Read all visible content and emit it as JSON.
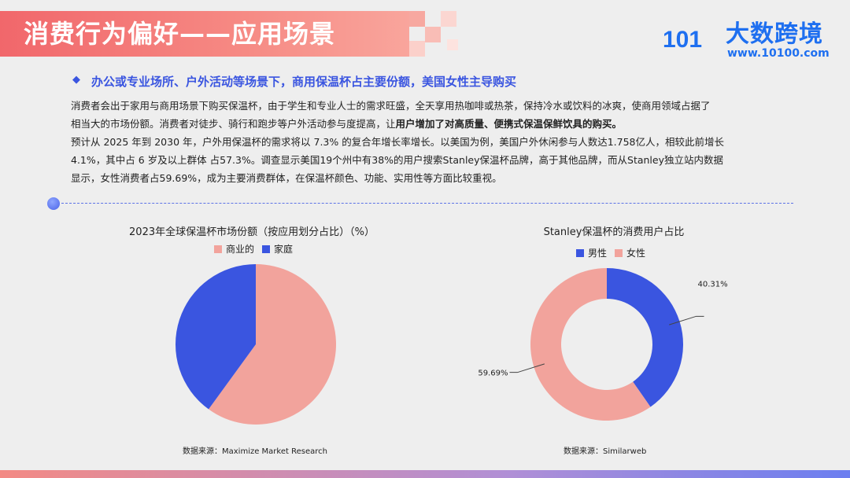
{
  "header": {
    "title": "消费行为偏好——应用场景",
    "logo_name": "大数跨境",
    "logo_url": "www.10100.com",
    "logo_mark": "10100",
    "brand_color": "#1e6ff0"
  },
  "content": {
    "bullet_icon": "diamond-icon",
    "subheading": "办公或专业场所、户外活动等场景下，商用保温杯占主要份额，美国女性主导购买",
    "para1_lines": [
      "消费者会出于家用与商用场景下购买保温杯，由于学生和专业人士的需求旺盛，全天享用热咖啡或热茶，保持冷水或饮料的冰爽，使商用领域占据了",
      "相当大的市场份额。消费者对徒步、骑行和跑步等户外活动参与度提高，让"
    ],
    "para1_bold": "用户增加了对高质量、便携式保温保鲜饮具的购买。",
    "para2_lines": [
      "预计从 2025 年到 2030 年，户外用保温杯的需求将以 7.3% 的复合年增长率增长。以美国为例，美国户外休闲参与人数达1.758亿人，相较此前增长",
      "4.1%，其中占 6 岁及以上群体 占57.3%。调查显示美国19个州中有38%的用户搜索Stanley保温杯品牌，高于其他品牌，而从Stanley独立站内数据",
      "显示，女性消费者占59.69%，成为主要消费群体，在保温杯颜色、功能、实用性等方面比较重视。"
    ]
  },
  "chart_data": [
    {
      "type": "pie",
      "title": "2023年全球保温杯市场份额（按应用划分占比）（%）",
      "categories": [
        "商业的",
        "家庭"
      ],
      "values": [
        60,
        40
      ],
      "colors": [
        "#f2a39c",
        "#3a55e0"
      ],
      "legend_position": "top",
      "source": "数据来源：Maximize Market Research"
    },
    {
      "type": "pie",
      "subtype": "donut",
      "title": "Stanley保温杯的消费用户占比",
      "categories": [
        "男性",
        "女性"
      ],
      "values": [
        40.31,
        59.69
      ],
      "labels": [
        "40.31%",
        "59.69%"
      ],
      "colors": [
        "#3a55e0",
        "#f2a39c"
      ],
      "legend_position": "top",
      "source": "数据来源：Similarweb"
    }
  ]
}
